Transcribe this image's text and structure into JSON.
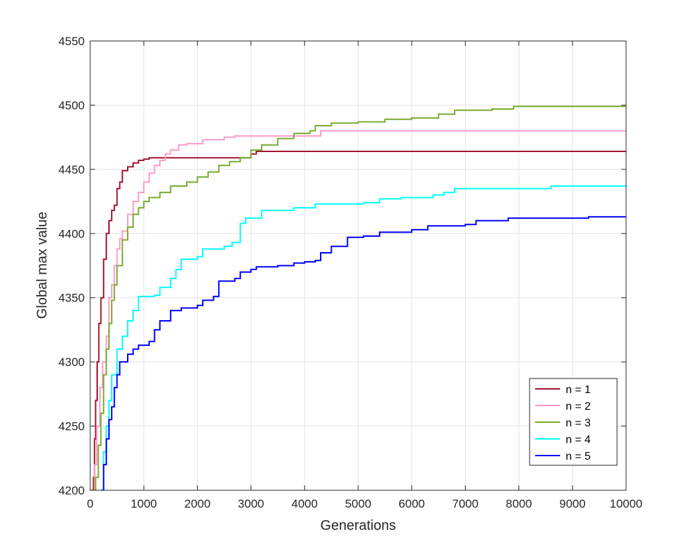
{
  "chart_data": {
    "type": "line",
    "title": "",
    "xlabel": "Generations",
    "ylabel": "Global max value",
    "xlim": [
      0,
      10000
    ],
    "ylim": [
      4200,
      4550
    ],
    "xticks": [
      0,
      1000,
      2000,
      3000,
      4000,
      5000,
      6000,
      7000,
      8000,
      9000,
      10000
    ],
    "yticks": [
      4200,
      4250,
      4300,
      4350,
      4400,
      4450,
      4500,
      4550
    ],
    "grid": true,
    "legend_position": "bottom-right",
    "series": [
      {
        "name": "n = 1",
        "color": "#a2142f",
        "points": [
          [
            0,
            4200
          ],
          [
            60,
            4210
          ],
          [
            80,
            4240
          ],
          [
            100,
            4270
          ],
          [
            130,
            4300
          ],
          [
            160,
            4330
          ],
          [
            200,
            4350
          ],
          [
            250,
            4380
          ],
          [
            300,
            4400
          ],
          [
            350,
            4410
          ],
          [
            400,
            4418
          ],
          [
            450,
            4422
          ],
          [
            500,
            4435
          ],
          [
            550,
            4440
          ],
          [
            600,
            4449
          ],
          [
            700,
            4452
          ],
          [
            800,
            4455
          ],
          [
            900,
            4457
          ],
          [
            1000,
            4458
          ],
          [
            1100,
            4459
          ],
          [
            2900,
            4459
          ],
          [
            3000,
            4462
          ],
          [
            3100,
            4464
          ],
          [
            10000,
            4464
          ]
        ]
      },
      {
        "name": "n = 2",
        "color": "#ff99cc",
        "points": [
          [
            0,
            4200
          ],
          [
            80,
            4220
          ],
          [
            120,
            4250
          ],
          [
            180,
            4280
          ],
          [
            230,
            4300
          ],
          [
            300,
            4320
          ],
          [
            350,
            4350
          ],
          [
            400,
            4360
          ],
          [
            450,
            4375
          ],
          [
            500,
            4388
          ],
          [
            550,
            4396
          ],
          [
            600,
            4402
          ],
          [
            700,
            4415
          ],
          [
            800,
            4425
          ],
          [
            900,
            4432
          ],
          [
            1000,
            4440
          ],
          [
            1100,
            4447
          ],
          [
            1200,
            4453
          ],
          [
            1300,
            4457
          ],
          [
            1400,
            4462
          ],
          [
            1500,
            4465
          ],
          [
            1650,
            4469
          ],
          [
            1800,
            4470
          ],
          [
            2100,
            4473
          ],
          [
            2500,
            4475
          ],
          [
            2700,
            4476
          ],
          [
            4200,
            4476
          ],
          [
            4300,
            4480
          ],
          [
            10000,
            4480
          ]
        ]
      },
      {
        "name": "n = 3",
        "color": "#77ac30",
        "points": [
          [
            0,
            4200
          ],
          [
            100,
            4210
          ],
          [
            150,
            4235
          ],
          [
            200,
            4260
          ],
          [
            250,
            4290
          ],
          [
            300,
            4310
          ],
          [
            350,
            4330
          ],
          [
            400,
            4348
          ],
          [
            450,
            4360
          ],
          [
            500,
            4375
          ],
          [
            600,
            4395
          ],
          [
            700,
            4405
          ],
          [
            800,
            4415
          ],
          [
            900,
            4420
          ],
          [
            1000,
            4425
          ],
          [
            1100,
            4428
          ],
          [
            1300,
            4432
          ],
          [
            1500,
            4437
          ],
          [
            1800,
            4440
          ],
          [
            2000,
            4444
          ],
          [
            2200,
            4448
          ],
          [
            2400,
            4453
          ],
          [
            2600,
            4456
          ],
          [
            2800,
            4459
          ],
          [
            3000,
            4465
          ],
          [
            3200,
            4469
          ],
          [
            3500,
            4474
          ],
          [
            3800,
            4478
          ],
          [
            4100,
            4480
          ],
          [
            4200,
            4484
          ],
          [
            4500,
            4486
          ],
          [
            5000,
            4487
          ],
          [
            5500,
            4489
          ],
          [
            6000,
            4490
          ],
          [
            6500,
            4493
          ],
          [
            6800,
            4496
          ],
          [
            7500,
            4497
          ],
          [
            7900,
            4499
          ],
          [
            9900,
            4499
          ],
          [
            10000,
            4500
          ]
        ]
      },
      {
        "name": "n = 4",
        "color": "#00ffff",
        "points": [
          [
            0,
            4195
          ],
          [
            200,
            4200
          ],
          [
            250,
            4230
          ],
          [
            300,
            4250
          ],
          [
            350,
            4270
          ],
          [
            400,
            4290
          ],
          [
            500,
            4310
          ],
          [
            600,
            4320
          ],
          [
            700,
            4332
          ],
          [
            800,
            4340
          ],
          [
            900,
            4351
          ],
          [
            1200,
            4352
          ],
          [
            1300,
            4358
          ],
          [
            1500,
            4365
          ],
          [
            1600,
            4372
          ],
          [
            1700,
            4380
          ],
          [
            2000,
            4382
          ],
          [
            2100,
            4388
          ],
          [
            2500,
            4390
          ],
          [
            2650,
            4393
          ],
          [
            2800,
            4408
          ],
          [
            2900,
            4412
          ],
          [
            3200,
            4418
          ],
          [
            3800,
            4420
          ],
          [
            4200,
            4423
          ],
          [
            5100,
            4424
          ],
          [
            5400,
            4427
          ],
          [
            5800,
            4428
          ],
          [
            6400,
            4430
          ],
          [
            6600,
            4432
          ],
          [
            6800,
            4435
          ],
          [
            8500,
            4435
          ],
          [
            8600,
            4437
          ],
          [
            10000,
            4437
          ]
        ]
      },
      {
        "name": "n = 5",
        "color": "#0000ff",
        "points": [
          [
            0,
            4195
          ],
          [
            220,
            4200
          ],
          [
            250,
            4220
          ],
          [
            300,
            4240
          ],
          [
            350,
            4255
          ],
          [
            400,
            4265
          ],
          [
            450,
            4280
          ],
          [
            500,
            4290
          ],
          [
            550,
            4300
          ],
          [
            700,
            4306
          ],
          [
            800,
            4310
          ],
          [
            900,
            4313
          ],
          [
            1100,
            4316
          ],
          [
            1200,
            4325
          ],
          [
            1300,
            4332
          ],
          [
            1500,
            4340
          ],
          [
            1700,
            4342
          ],
          [
            2000,
            4344
          ],
          [
            2100,
            4348
          ],
          [
            2300,
            4351
          ],
          [
            2400,
            4363
          ],
          [
            2700,
            4365
          ],
          [
            2800,
            4370
          ],
          [
            3000,
            4372
          ],
          [
            3100,
            4374
          ],
          [
            3500,
            4375
          ],
          [
            3800,
            4377
          ],
          [
            4000,
            4378
          ],
          [
            4200,
            4379
          ],
          [
            4300,
            4385
          ],
          [
            4500,
            4390
          ],
          [
            4800,
            4397
          ],
          [
            5100,
            4398
          ],
          [
            5400,
            4401
          ],
          [
            6000,
            4403
          ],
          [
            6300,
            4406
          ],
          [
            7000,
            4407
          ],
          [
            7200,
            4410
          ],
          [
            7800,
            4412
          ],
          [
            9300,
            4413
          ],
          [
            10000,
            4413
          ]
        ]
      }
    ]
  }
}
